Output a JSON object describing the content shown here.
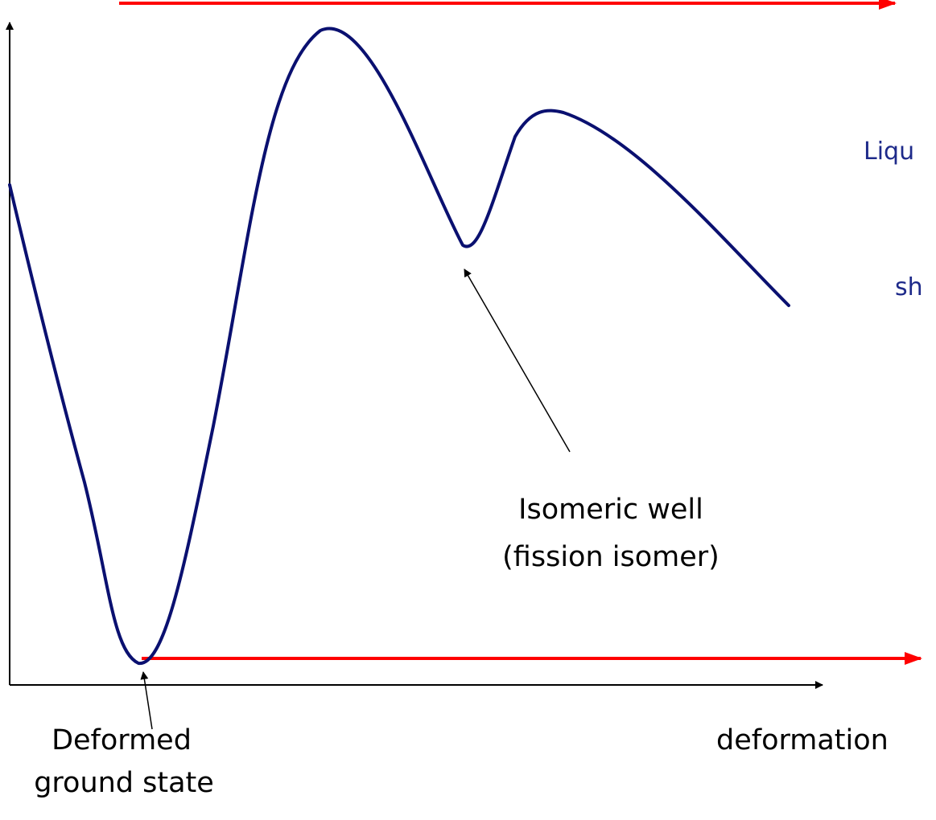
{
  "colors": {
    "curve": "#0a1070",
    "reference_line": "#ff0000",
    "axes": "#000000",
    "side_text": "#1e2a8a",
    "annotation": "#000000"
  },
  "labels": {
    "isomeric_well_line1": "Isomeric well",
    "isomeric_well_line2": "(fission isomer)",
    "ground_state_line1": "Deformed",
    "ground_state_line2": "ground state",
    "x_axis": "deformation",
    "side_text_1": "Liqu",
    "side_text_2": "sh"
  }
}
